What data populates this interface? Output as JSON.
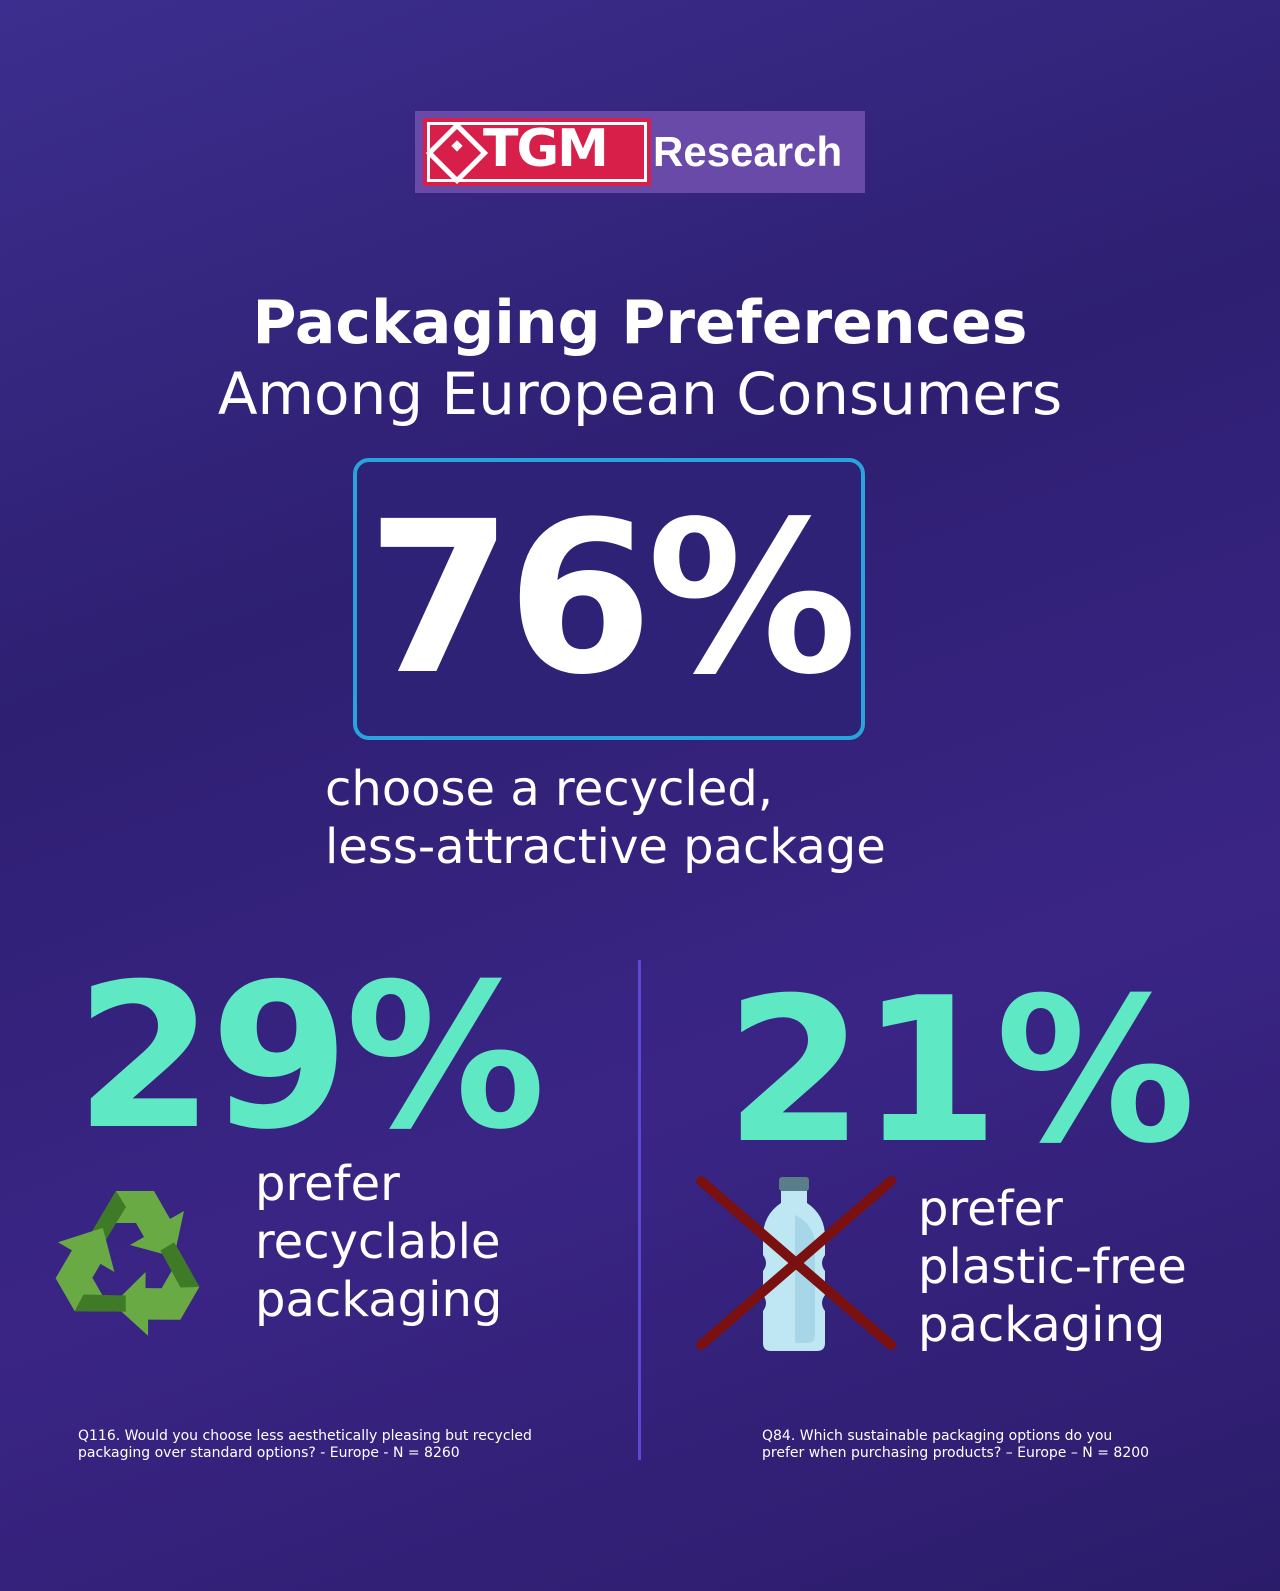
{
  "logo": {
    "brand_mark": "TGM",
    "brand_suffix": "Research"
  },
  "header": {
    "title": "Packaging Preferences",
    "subtitle": "Among European Consumers"
  },
  "hero": {
    "value": "76%",
    "caption_line1": "choose a recycled,",
    "caption_line2": "less-attractive package"
  },
  "stats": [
    {
      "value": "29%",
      "label_lines": [
        "prefer",
        "recyclable",
        "packaging"
      ],
      "icon": "recycle-icon",
      "footnote_line1": "Q116. Would you choose less aesthetically pleasing but recycled",
      "footnote_line2": "packaging over standard options? - Europe - N = 8260"
    },
    {
      "value": "21%",
      "label_lines": [
        "prefer",
        "plastic-free",
        "packaging"
      ],
      "icon": "crossed-plastic-bottle-icon",
      "footnote_line1": "Q84. Which sustainable packaging options do you",
      "footnote_line2": "prefer when purchasing products? – Europe – N = 8200"
    }
  ],
  "colors": {
    "background": "#2e1f72",
    "accent_teal": "#5fe8c4",
    "box_border": "#29a3dc",
    "divider": "#5b49d6",
    "logo_red": "#d81f4a",
    "logo_purple": "#6a4aa8",
    "recycle_green": "#6aaa45",
    "cross_red": "#7a1010"
  }
}
